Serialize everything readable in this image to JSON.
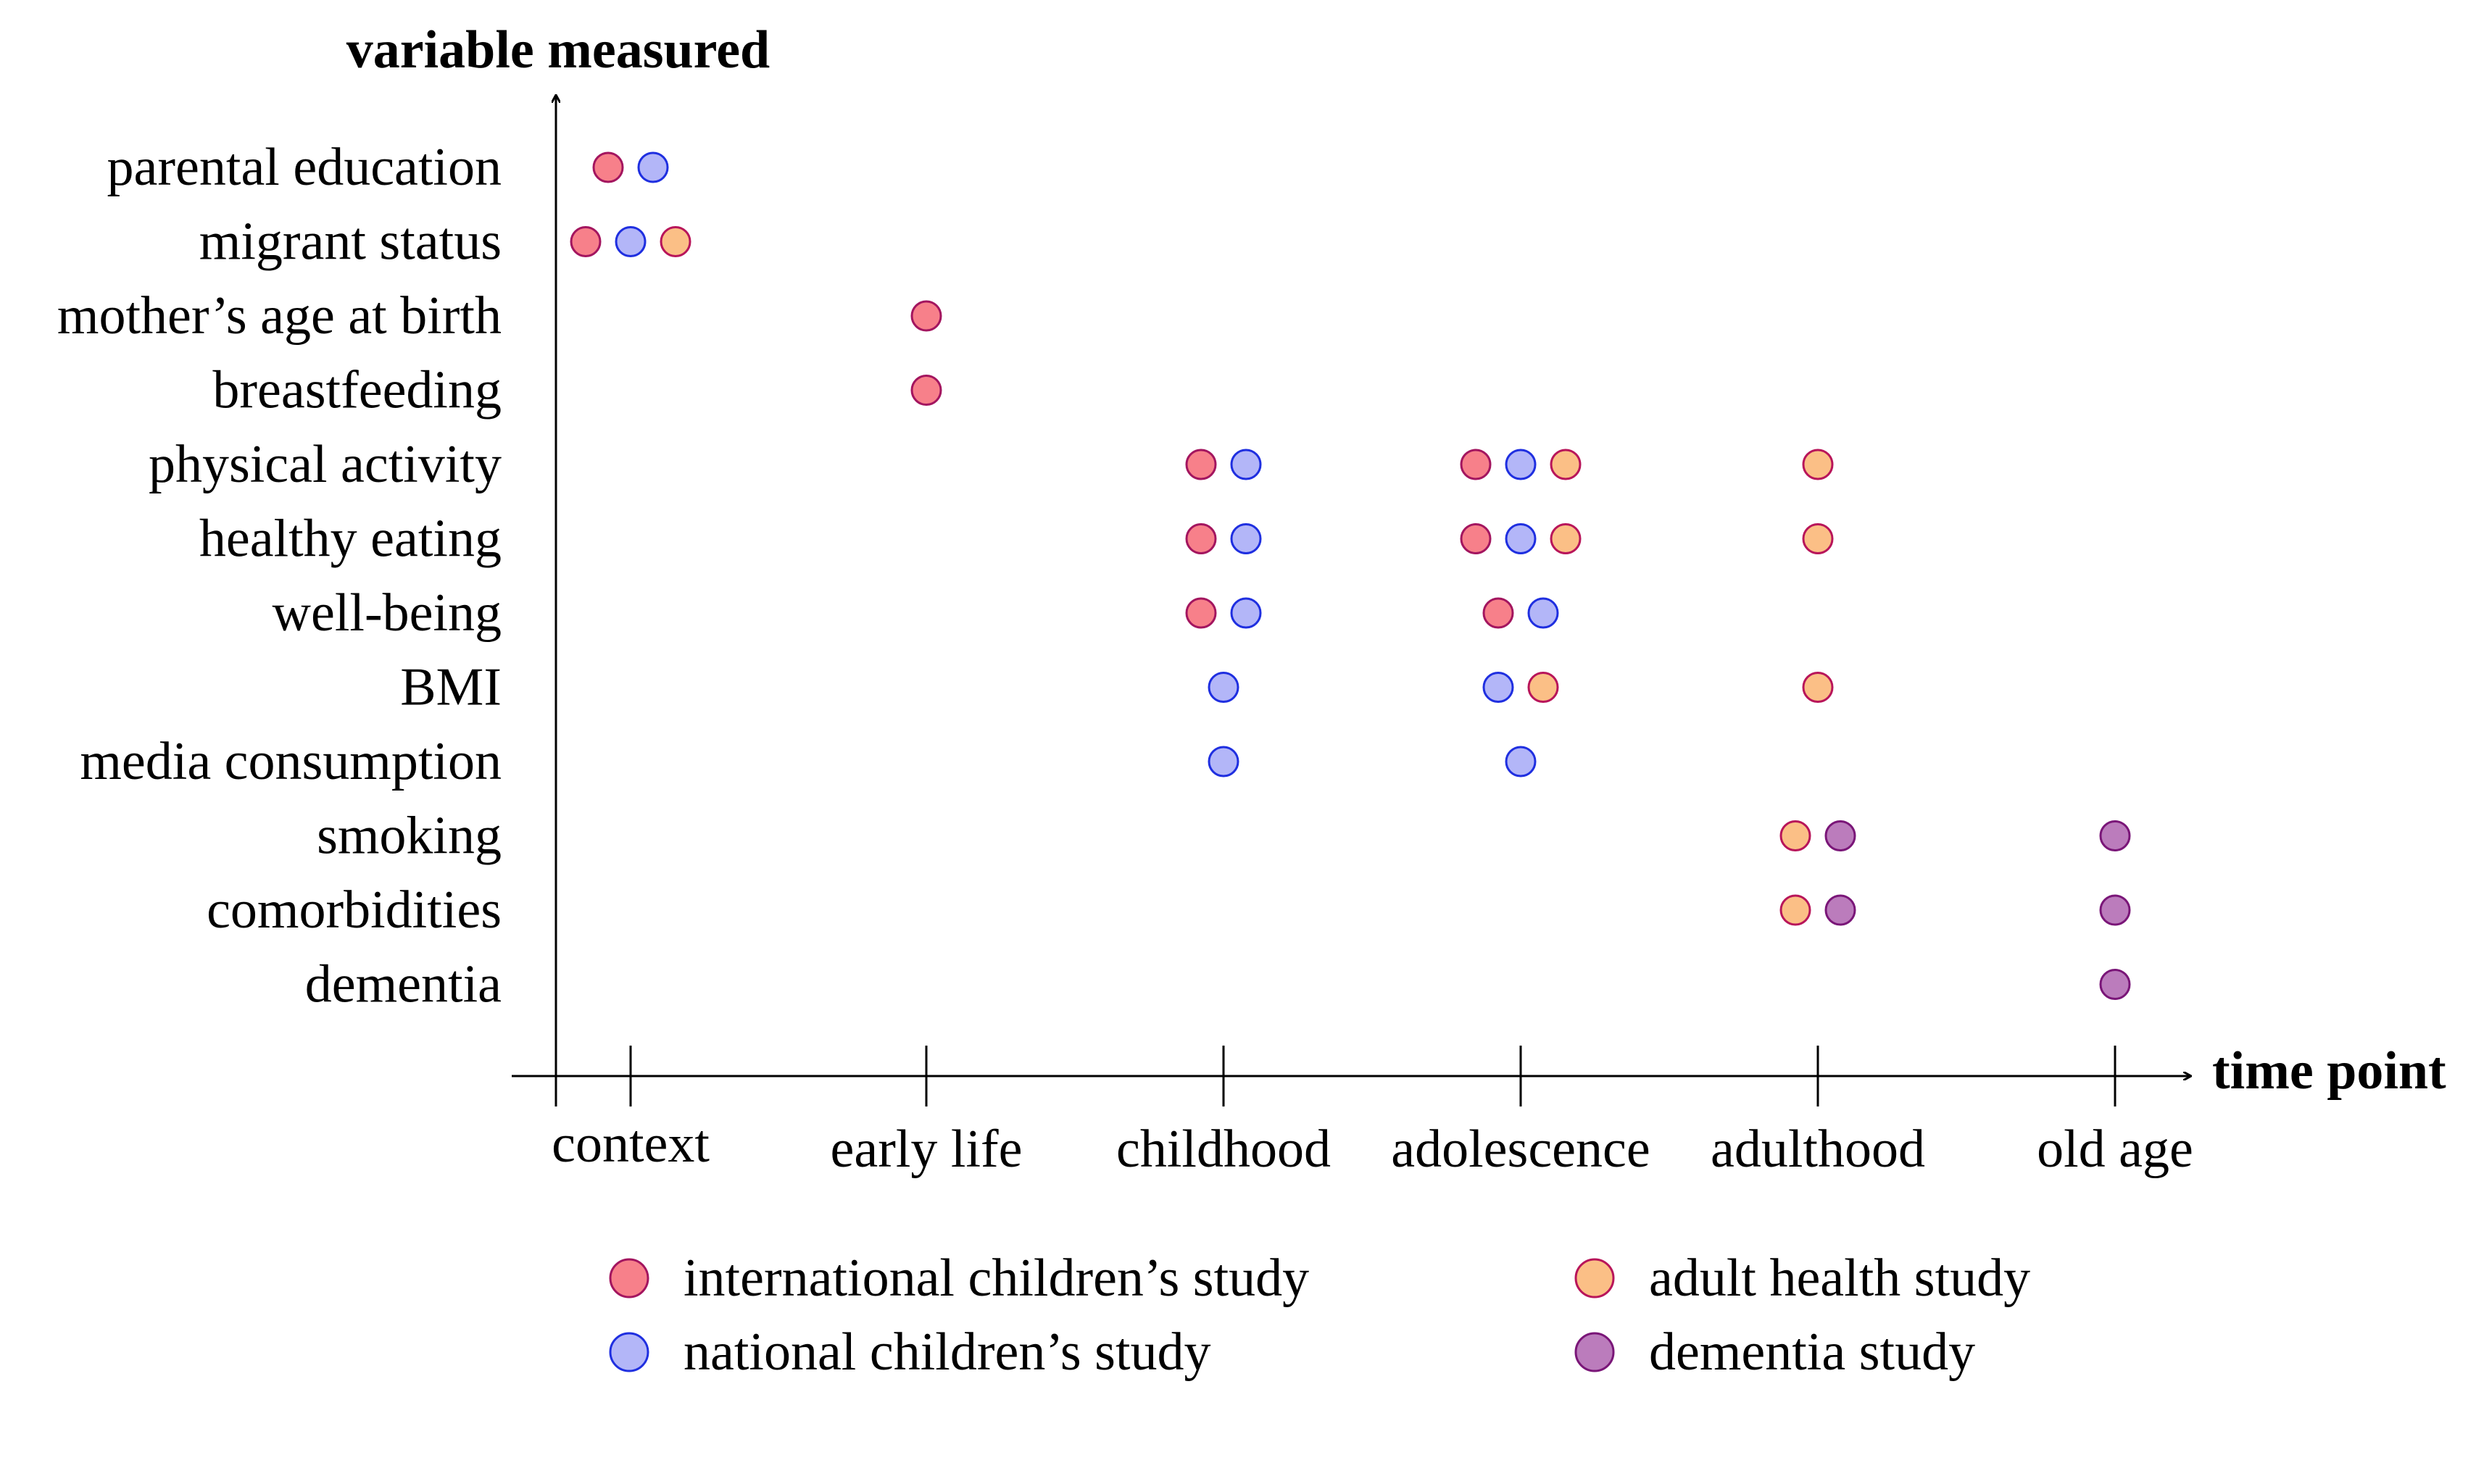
{
  "chart_data": {
    "type": "scatter",
    "title": "",
    "ylabel": "variable measured",
    "xlabel": "time point",
    "categories": [
      "context",
      "early life",
      "childhood",
      "adolescence",
      "adulthood",
      "old age"
    ],
    "variables": [
      "parental education",
      "migrant status",
      "mother’s age at birth",
      "breastfeeding",
      "physical activity",
      "healthy eating",
      "well-being",
      "BMI",
      "media consumption",
      "smoking",
      "comorbidities",
      "dementia"
    ],
    "series": [
      {
        "name": "international children’s study",
        "fill": "#f7808a",
        "stroke": "#a3155f",
        "points": [
          {
            "time": "context",
            "variable": "parental education"
          },
          {
            "time": "context",
            "variable": "migrant status"
          },
          {
            "time": "early life",
            "variable": "mother’s age at birth"
          },
          {
            "time": "early life",
            "variable": "breastfeeding"
          },
          {
            "time": "childhood",
            "variable": "physical activity"
          },
          {
            "time": "childhood",
            "variable": "healthy eating"
          },
          {
            "time": "childhood",
            "variable": "well-being"
          },
          {
            "time": "adolescence",
            "variable": "physical activity"
          },
          {
            "time": "adolescence",
            "variable": "healthy eating"
          },
          {
            "time": "adolescence",
            "variable": "well-being"
          }
        ]
      },
      {
        "name": "national children’s study",
        "fill": "#b3b6f8",
        "stroke": "#1f2fe0",
        "points": [
          {
            "time": "context",
            "variable": "parental education"
          },
          {
            "time": "context",
            "variable": "migrant status"
          },
          {
            "time": "childhood",
            "variable": "physical activity"
          },
          {
            "time": "childhood",
            "variable": "healthy eating"
          },
          {
            "time": "childhood",
            "variable": "well-being"
          },
          {
            "time": "childhood",
            "variable": "BMI"
          },
          {
            "time": "childhood",
            "variable": "media consumption"
          },
          {
            "time": "adolescence",
            "variable": "physical activity"
          },
          {
            "time": "adolescence",
            "variable": "healthy eating"
          },
          {
            "time": "adolescence",
            "variable": "well-being"
          },
          {
            "time": "adolescence",
            "variable": "BMI"
          },
          {
            "time": "adolescence",
            "variable": "media consumption"
          }
        ]
      },
      {
        "name": "adult health study",
        "fill": "#fbbf86",
        "stroke": "#b8155a",
        "points": [
          {
            "time": "context",
            "variable": "migrant status"
          },
          {
            "time": "adolescence",
            "variable": "physical activity"
          },
          {
            "time": "adolescence",
            "variable": "healthy eating"
          },
          {
            "time": "adolescence",
            "variable": "BMI"
          },
          {
            "time": "adulthood",
            "variable": "physical activity"
          },
          {
            "time": "adulthood",
            "variable": "healthy eating"
          },
          {
            "time": "adulthood",
            "variable": "BMI"
          },
          {
            "time": "adulthood",
            "variable": "smoking"
          },
          {
            "time": "adulthood",
            "variable": "comorbidities"
          }
        ]
      },
      {
        "name": "dementia study",
        "fill": "#bb7cbc",
        "stroke": "#7a1678",
        "points": [
          {
            "time": "adulthood",
            "variable": "smoking"
          },
          {
            "time": "adulthood",
            "variable": "comorbidities"
          },
          {
            "time": "old age",
            "variable": "smoking"
          },
          {
            "time": "old age",
            "variable": "comorbidities"
          },
          {
            "time": "old age",
            "variable": "dementia"
          }
        ]
      }
    ],
    "legend_position": "bottom",
    "grid": false
  }
}
